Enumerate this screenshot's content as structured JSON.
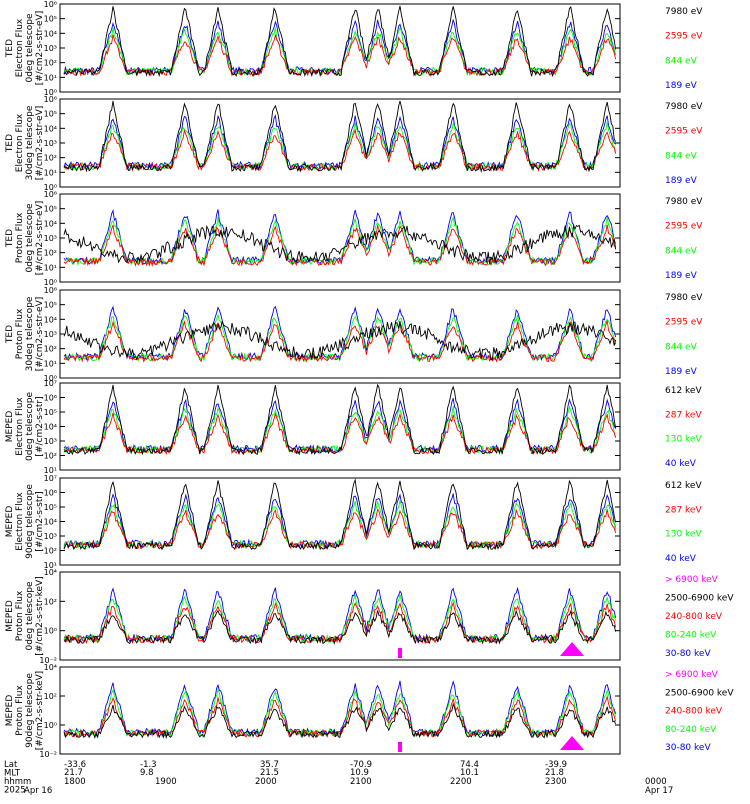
{
  "colors": {
    "blue": "#0000ff",
    "red": "#ff0000",
    "green": "#00ff00",
    "black": "#000000",
    "magenta": "#ff00ff"
  },
  "chart_data": [
    {
      "type": "line",
      "ylabel": [
        "TED",
        "Electron Flux",
        "0deg telescope",
        "[#/cm2-s-str-eV]"
      ],
      "yticks": [
        "10⁰",
        "10¹",
        "10²",
        "10³",
        "10⁴",
        "10⁵",
        "10⁶"
      ],
      "legend": [
        {
          "label": "7980 eV",
          "color": "black"
        },
        {
          "label": "2595 eV",
          "color": "red"
        },
        {
          "label": "844 eV",
          "color": "green"
        },
        {
          "label": "189 eV",
          "color": "blue"
        }
      ],
      "ylim": [
        0,
        6
      ]
    },
    {
      "type": "line",
      "ylabel": [
        "TED",
        "Electron Flux",
        "30deg telescope",
        "[#/cm2-s-str-eV]"
      ],
      "yticks": [
        "10⁰",
        "10¹",
        "10²",
        "10³",
        "10⁴",
        "10⁵",
        "10⁶"
      ],
      "legend": [
        {
          "label": "7980 eV",
          "color": "black"
        },
        {
          "label": "2595 eV",
          "color": "red"
        },
        {
          "label": "844 eV",
          "color": "green"
        },
        {
          "label": "189 eV",
          "color": "blue"
        }
      ],
      "ylim": [
        0,
        6
      ]
    },
    {
      "type": "line",
      "ylabel": [
        "TED",
        "Proton Flux",
        "0deg telescope",
        "[#/cm2-s-str-eV]"
      ],
      "yticks": [
        "10⁰",
        "10¹",
        "10²",
        "10³",
        "10⁴",
        "10⁵",
        "10⁶"
      ],
      "legend": [
        {
          "label": "7980 eV",
          "color": "black"
        },
        {
          "label": "2595 eV",
          "color": "red"
        },
        {
          "label": "844 eV",
          "color": "green"
        },
        {
          "label": "189 eV",
          "color": "blue"
        }
      ],
      "ylim": [
        0,
        6
      ]
    },
    {
      "type": "line",
      "ylabel": [
        "TED",
        "Proton Flux",
        "30deg telescope",
        "[#/cm2-s-str-eV]"
      ],
      "yticks": [
        "10⁰",
        "10¹",
        "10²",
        "10³",
        "10⁴",
        "10⁵",
        "10⁶"
      ],
      "legend": [
        {
          "label": "7980 eV",
          "color": "black"
        },
        {
          "label": "2595 eV",
          "color": "red"
        },
        {
          "label": "844 eV",
          "color": "green"
        },
        {
          "label": "189 eV",
          "color": "blue"
        }
      ],
      "ylim": [
        0,
        6
      ]
    },
    {
      "type": "line",
      "ylabel": [
        "MEPED",
        "Electron Flux",
        "0deg telescope",
        "[#/cm2-s-str]"
      ],
      "yticks": [
        "10¹",
        "10²",
        "10³",
        "10⁴",
        "10⁵",
        "10⁶",
        "10⁷"
      ],
      "legend": [
        {
          "label": "612 keV",
          "color": "black"
        },
        {
          "label": "287 keV",
          "color": "red"
        },
        {
          "label": "130 keV",
          "color": "green"
        },
        {
          "label": "40 keV",
          "color": "blue"
        }
      ],
      "ylim": [
        1,
        7
      ]
    },
    {
      "type": "line",
      "ylabel": [
        "MEPED",
        "Electron Flux",
        "90deg telescope",
        "[#/cm2-s-str]"
      ],
      "yticks": [
        "10¹",
        "10²",
        "10³",
        "10⁴",
        "10⁵",
        "10⁶",
        "10⁷"
      ],
      "legend": [
        {
          "label": "612 keV",
          "color": "black"
        },
        {
          "label": "287 keV",
          "color": "red"
        },
        {
          "label": "130 keV",
          "color": "green"
        },
        {
          "label": "40 keV",
          "color": "blue"
        }
      ],
      "ylim": [
        1,
        7
      ]
    },
    {
      "type": "line",
      "ylabel": [
        "MEPED",
        "Proton Flux",
        "0deg telescope",
        "[#/cm2-s-str-keV]"
      ],
      "yticks": [
        "10⁻²",
        "10⁰",
        "10²",
        "10⁴"
      ],
      "legend": [
        {
          "label": "> 6900 keV",
          "color": "magenta"
        },
        {
          "label": "2500-6900 keV",
          "color": "black"
        },
        {
          "label": "240-800 keV",
          "color": "red"
        },
        {
          "label": "80-240 keV",
          "color": "green"
        },
        {
          "label": "30-80 keV",
          "color": "blue"
        }
      ],
      "ylim": [
        -2,
        5
      ]
    },
    {
      "type": "line",
      "ylabel": [
        "MEPED",
        "Proton Flux",
        "90deg telescope",
        "[#/cm2-s-str-keV]"
      ],
      "yticks": [
        "10⁻²",
        "10⁰",
        "10²",
        "10⁴"
      ],
      "legend": [
        {
          "label": "> 6900 keV",
          "color": "magenta"
        },
        {
          "label": "2500-6900 keV",
          "color": "black"
        },
        {
          "label": "240-800 keV",
          "color": "red"
        },
        {
          "label": "80-240 keV",
          "color": "green"
        },
        {
          "label": "30-80 keV",
          "color": "blue"
        }
      ],
      "ylim": [
        -2,
        5
      ]
    }
  ],
  "xaxis": {
    "row_labels": [
      "Lat",
      "MLT",
      "hhmm",
      "2025"
    ],
    "lat": [
      "-33.6",
      "-1.3",
      "35.7",
      "-70.9",
      "74.4",
      "-39.9"
    ],
    "mlt": [
      "21.7",
      "9.8",
      "21.5",
      "10.9",
      "10.1",
      "21.8"
    ],
    "hhmm": [
      "1800",
      "1900",
      "2000",
      "2100",
      "2200",
      "2300",
      "0000"
    ],
    "dates": [
      "Apr 16",
      "Apr 17"
    ]
  }
}
